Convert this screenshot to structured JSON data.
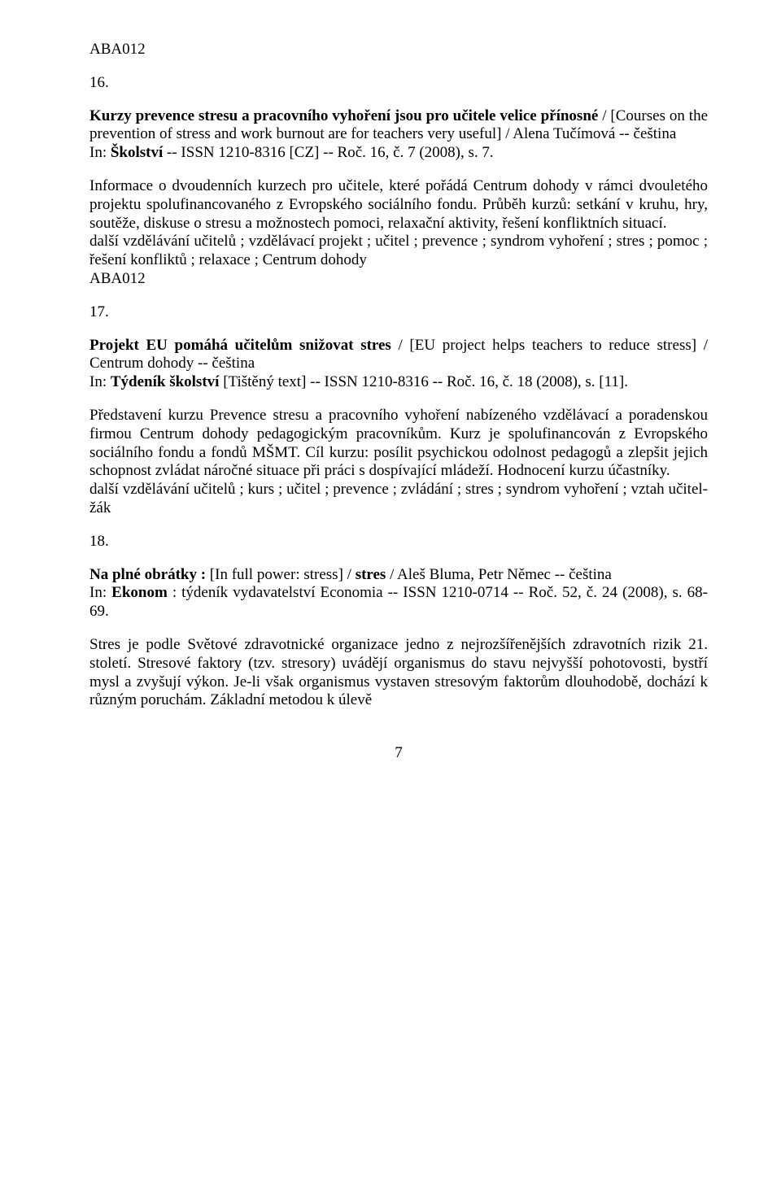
{
  "doc": {
    "font_family": "Times New Roman",
    "font_size_pt": 14,
    "text_color": "#000000",
    "background_color": "#ffffff",
    "text_align": "justify",
    "page_number": "7",
    "aba_top": "ABA012",
    "num16": "16.",
    "p16_title_html": "<b>Kurzy prevence stresu a pracovního vyhoření jsou pro učitele velice přínosné</b> / [Courses on the prevention of stress and work burnout are for teachers very useful] / Alena Tučímová -- čeština",
    "p16_in": "In: <b>Školství</b> -- ISSN 1210-8316 [CZ] -- Roč. 16, č. 7 (2008), s. 7.",
    "p16_body": "Informace o dvoudenních kurzech pro učitele, které pořádá Centrum dohody v rámci dvouletého projektu spolufinancovaného z Evropského sociálního fondu. Průběh kurzů: setkání v kruhu, hry, soutěže, diskuse o stresu a možnostech pomoci, relaxační aktivity, řešení konfliktních situací.",
    "p16_kw": "další vzdělávání učitelů ; vzdělávací projekt ; učitel ; prevence ; syndrom vyhoření ; stres ; pomoc ; řešení konfliktů ; relaxace ; Centrum dohody",
    "aba_mid": "ABA012",
    "num17": "17.",
    "p17_title_html": "<b>Projekt EU pomáhá učitelům snižovat stres</b> / [EU project helps teachers to reduce stress] / Centrum dohody -- čeština",
    "p17_in": "In: <b>Týdeník školství</b> [Tištěný text] -- ISSN 1210-8316 -- Roč. 16, č. 18 (2008), s. [11].",
    "p17_body": "Představení kurzu Prevence stresu a pracovního vyhoření nabízeného vzdělávací a poradenskou firmou Centrum dohody pedagogickým pracovníkům. Kurz je spolufinancován z Evropského sociálního fondu a fondů MŠMT. Cíl kurzu: posílit psychickou odolnost pedagogů a zlepšit jejich schopnost zvládat náročné situace při práci s dospívající mládeží. Hodnocení kurzu účastníky.",
    "p17_kw": "další vzdělávání učitelů ; kurs ; učitel ; prevence ; zvládání ; stres ; syndrom vyhoření ; vztah učitel-žák",
    "num18": "18.",
    "p18_title_html": "<b>Na plné obrátky :</b> [In full power: stress] / <b>stres</b> / Aleš Bluma, Petr Němec -- čeština",
    "p18_in": "In: <b>Ekonom</b> : týdeník vydavatelství Economia -- ISSN 1210-0714 -- Roč. 52, č. 24 (2008), s. 68-69.",
    "p18_body": "Stres je podle Světové zdravotnické organizace jedno z nejrozšířenějších zdravotních rizik 21. století. Stresové faktory (tzv. stresory) uvádějí organismus do stavu nejvyšší pohotovosti, bystří mysl a zvyšují výkon. Je-li však organismus vystaven stresovým faktorům dlouhodobě, dochází k různým poruchám. Základní metodou k úlevě"
  }
}
